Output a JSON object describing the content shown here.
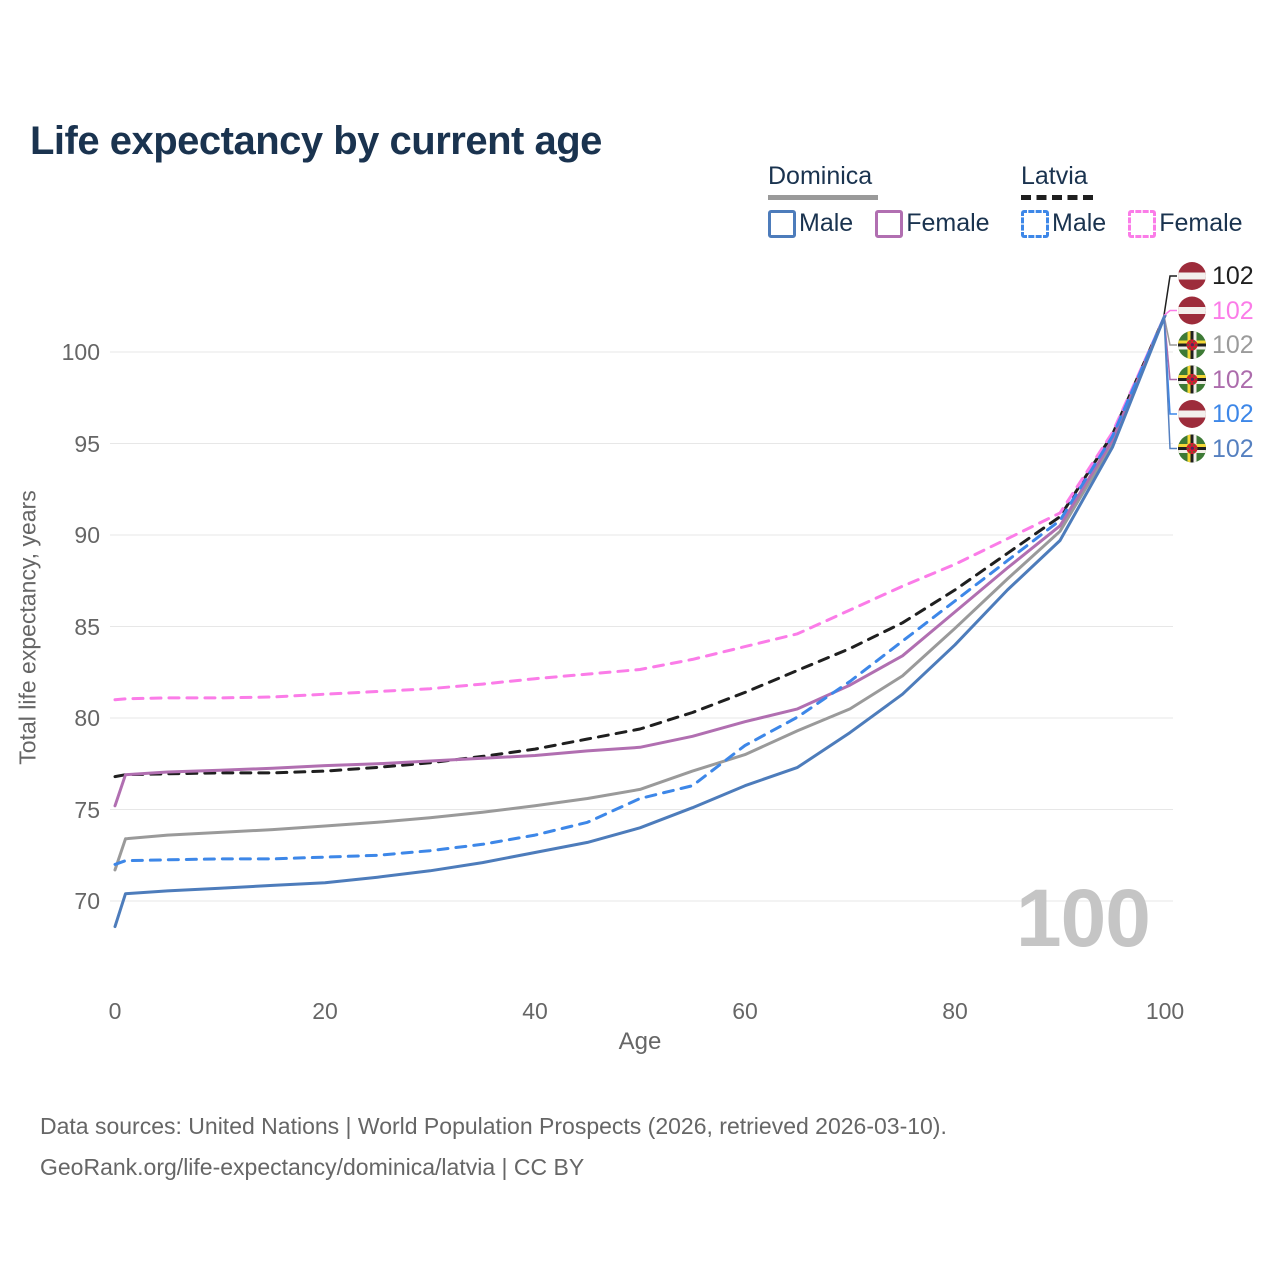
{
  "title": "Life expectancy by current age",
  "legend": {
    "groups": [
      {
        "country": "Dominica",
        "line_style": "solid",
        "underline_color": "#9a9a9a",
        "items": [
          {
            "label": "Male",
            "color": "#4d7cbb"
          },
          {
            "label": "Female",
            "color": "#b16fb1"
          }
        ]
      },
      {
        "country": "Latvia",
        "line_style": "dashed",
        "underline_color": "#1f1f1f",
        "items": [
          {
            "label": "Male",
            "color": "#3d87e8"
          },
          {
            "label": "Female",
            "color": "#fb7ce8"
          }
        ]
      }
    ]
  },
  "watermark": "100",
  "footer": {
    "line1": "Data sources: United Nations | World Population Prospects (2026, retrieved 2026-03-10).",
    "line2": "GeoRank.org/life-expectancy/dominica/latvia | CC BY"
  },
  "chart_data": {
    "type": "line",
    "title": "Life expectancy by current age",
    "xlabel": "Age",
    "ylabel": "Total life expectancy, years",
    "xticks": [
      0,
      20,
      40,
      60,
      80,
      100
    ],
    "yticks": [
      70,
      75,
      80,
      85,
      90,
      95,
      100
    ],
    "xlim": [
      0,
      100
    ],
    "ylim": [
      66.5,
      103
    ],
    "grid": "horizontal-only",
    "legend_position": "top-right",
    "x": [
      0,
      1,
      5,
      10,
      15,
      20,
      25,
      30,
      35,
      40,
      45,
      50,
      55,
      60,
      65,
      70,
      75,
      80,
      85,
      90,
      95,
      100
    ],
    "series": [
      {
        "name": "Latvia All",
        "country": "Latvia",
        "color": "#1f1f1f",
        "dashed": true,
        "values": [
          76.8,
          76.9,
          76.95,
          77.0,
          77.0,
          77.1,
          77.3,
          77.55,
          77.9,
          78.3,
          78.85,
          79.4,
          80.3,
          81.4,
          82.6,
          83.8,
          85.2,
          87.0,
          89.0,
          91.0,
          95.5,
          102
        ]
      },
      {
        "name": "Latvia Female",
        "country": "Latvia",
        "color": "#fb7ce8",
        "dashed": true,
        "values": [
          81.0,
          81.05,
          81.1,
          81.1,
          81.15,
          81.3,
          81.45,
          81.6,
          81.85,
          82.15,
          82.4,
          82.65,
          83.2,
          83.9,
          84.6,
          85.9,
          87.2,
          88.4,
          89.8,
          91.2,
          95.6,
          102
        ]
      },
      {
        "name": "Dominica All",
        "country": "Dominica",
        "color": "#9a9a9a",
        "dashed": false,
        "values": [
          71.7,
          73.4,
          73.6,
          73.75,
          73.9,
          74.1,
          74.3,
          74.55,
          74.85,
          75.2,
          75.6,
          76.1,
          77.1,
          78.0,
          79.3,
          80.5,
          82.3,
          84.9,
          87.6,
          90.2,
          95.0,
          102
        ]
      },
      {
        "name": "Dominica Female",
        "country": "Dominica",
        "color": "#b16fb1",
        "dashed": false,
        "values": [
          75.2,
          76.9,
          77.05,
          77.15,
          77.25,
          77.4,
          77.5,
          77.65,
          77.8,
          77.95,
          78.2,
          78.4,
          79.0,
          79.8,
          80.5,
          81.8,
          83.4,
          85.8,
          88.2,
          90.5,
          95.2,
          102
        ]
      },
      {
        "name": "Latvia Male",
        "country": "Latvia",
        "color": "#3d87e8",
        "dashed": true,
        "values": [
          72.0,
          72.2,
          72.25,
          72.3,
          72.3,
          72.4,
          72.5,
          72.75,
          73.1,
          73.6,
          74.3,
          75.6,
          76.3,
          78.5,
          80.05,
          82.0,
          84.2,
          86.4,
          88.6,
          90.8,
          95.4,
          102
        ]
      },
      {
        "name": "Dominica Male",
        "country": "Dominica",
        "color": "#4d7cbb",
        "dashed": false,
        "values": [
          68.6,
          70.4,
          70.55,
          70.7,
          70.85,
          71.0,
          71.3,
          71.65,
          72.1,
          72.65,
          73.2,
          74.0,
          75.1,
          76.3,
          77.3,
          79.2,
          81.3,
          84.0,
          87.0,
          89.7,
          94.8,
          102
        ]
      }
    ],
    "end_labels": [
      {
        "text": "102",
        "color": "#1f1f1f",
        "flag": "latvia",
        "series": "Latvia All"
      },
      {
        "text": "102",
        "color": "#fb7ce8",
        "flag": "latvia",
        "series": "Latvia Female"
      },
      {
        "text": "102",
        "color": "#9b9b9b",
        "flag": "dominica",
        "series": "Dominica All"
      },
      {
        "text": "102",
        "color": "#ac6cac",
        "flag": "dominica",
        "series": "Dominica Female"
      },
      {
        "text": "102",
        "color": "#3d87e8",
        "flag": "latvia",
        "series": "Latvia Male"
      },
      {
        "text": "102",
        "color": "#5580c0",
        "flag": "dominica",
        "series": "Dominica Male"
      }
    ]
  }
}
